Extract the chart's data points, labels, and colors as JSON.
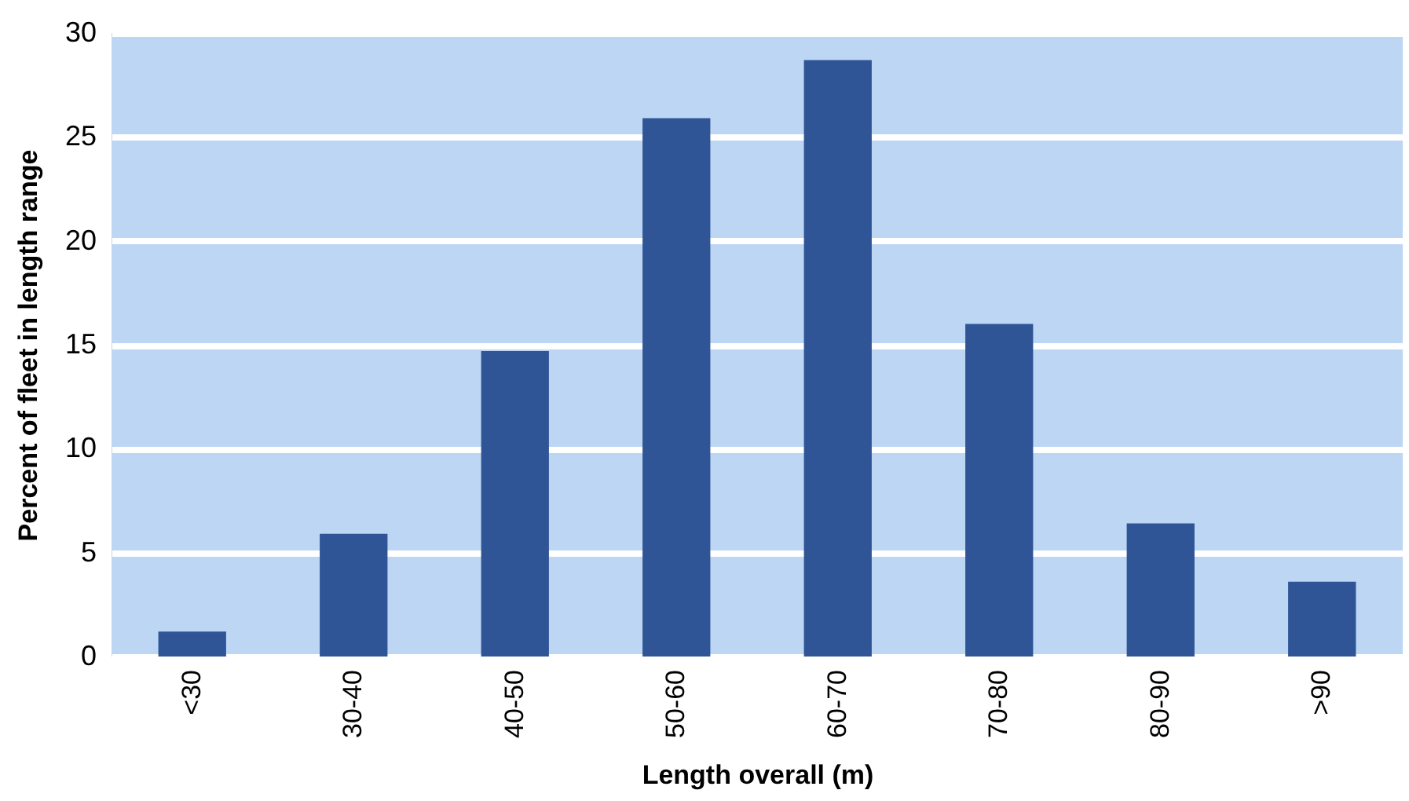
{
  "chart_data": {
    "type": "bar",
    "xlabel": "Length overall (m)",
    "ylabel": "Percent of fleet in length range",
    "categories": [
      "<30",
      "30-40",
      "40-50",
      "50-60",
      "60-70",
      "70-80",
      "80-90",
      ">90"
    ],
    "values": [
      1.2,
      5.9,
      14.7,
      25.9,
      28.7,
      16.0,
      6.4,
      3.6
    ],
    "color": "#2f5597",
    "ylim": [
      0,
      30
    ],
    "yticks": [
      0,
      5,
      10,
      15,
      20,
      25,
      30
    ],
    "grid": "y"
  }
}
